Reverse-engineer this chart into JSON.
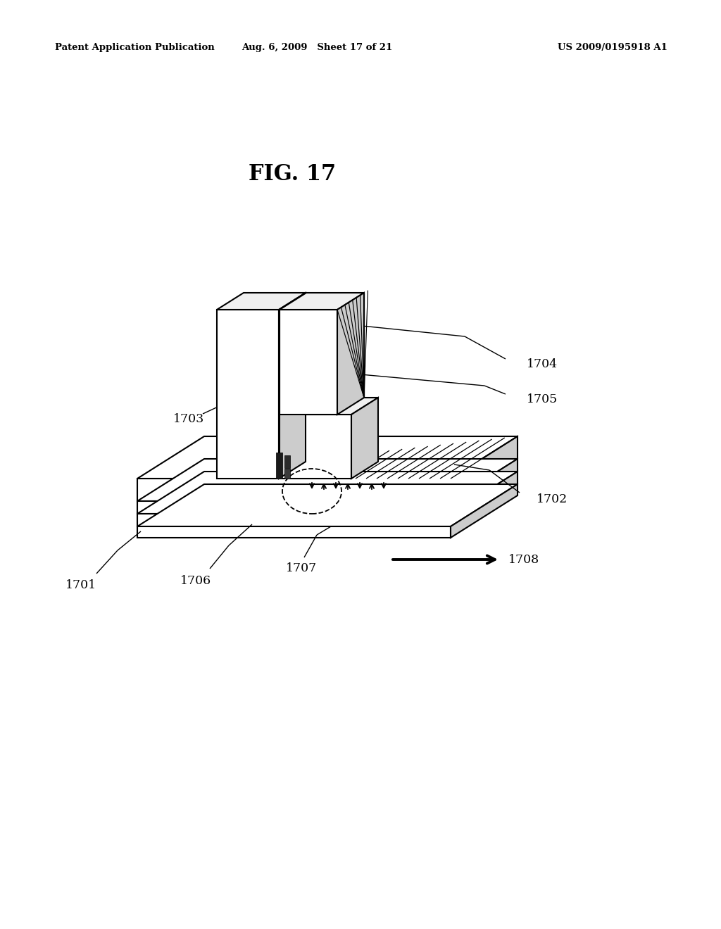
{
  "bg_color": "#ffffff",
  "header_left": "Patent Application Publication",
  "header_mid": "Aug. 6, 2009   Sheet 17 of 21",
  "header_right": "US 2009/0195918 A1",
  "fig_title": "FIG. 17",
  "lw_main": 1.5,
  "gray_right": "#cccccc",
  "gray_top": "#f0f0f0"
}
